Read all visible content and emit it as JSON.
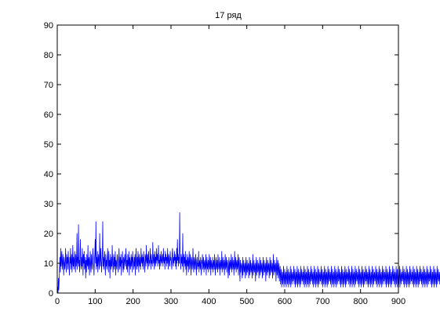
{
  "chart_data": {
    "type": "line",
    "title": "17 ряд",
    "xlabel": "",
    "ylabel": "",
    "xlim": [
      0,
      900
    ],
    "ylim": [
      0,
      90
    ],
    "xticks": [
      0,
      100,
      200,
      300,
      400,
      500,
      600,
      700,
      800,
      900
    ],
    "yticks": [
      0,
      10,
      20,
      30,
      40,
      50,
      60,
      70,
      80,
      90
    ],
    "grid": false,
    "legend": "none",
    "series": [
      {
        "color": "#0000ff",
        "x_start": 1,
        "x_step": 1,
        "values": [
          2,
          0,
          5,
          1,
          4,
          8,
          12,
          7,
          15,
          9,
          11,
          14,
          8,
          10,
          13,
          9,
          6,
          12,
          10,
          8,
          11,
          15,
          9,
          7,
          13,
          10,
          12,
          8,
          14,
          11,
          9,
          6,
          12,
          10,
          15,
          8,
          11,
          13,
          7,
          10,
          16,
          9,
          12,
          8,
          11,
          14,
          10,
          7,
          13,
          9,
          11,
          20,
          8,
          12,
          10,
          23,
          9,
          11,
          7,
          13,
          18,
          10,
          8,
          12,
          9,
          15,
          11,
          6,
          13,
          10,
          14,
          8,
          9,
          12,
          5,
          11,
          7,
          13,
          10,
          9,
          16,
          8,
          11,
          12,
          6,
          10,
          14,
          9,
          7,
          13,
          11,
          8,
          10,
          15,
          12,
          9,
          6,
          11,
          13,
          18,
          10,
          24,
          8,
          12,
          9,
          14,
          7,
          11,
          13,
          10,
          8,
          20,
          12,
          9,
          15,
          11,
          7,
          10,
          13,
          24,
          9,
          12,
          8,
          11,
          14,
          10,
          6,
          13,
          9,
          11,
          8,
          12,
          15,
          10,
          7,
          14,
          9,
          11,
          5,
          13,
          10,
          8,
          12,
          9,
          16,
          11,
          7,
          10,
          13,
          8,
          12,
          9,
          14,
          6,
          11,
          10,
          8,
          13,
          12,
          9,
          7,
          11,
          15,
          10,
          8,
          12,
          9,
          13,
          6,
          11,
          10,
          14,
          9,
          7,
          12,
          8,
          11,
          13,
          10,
          9,
          15,
          12,
          8,
          11,
          7,
          13,
          10,
          9,
          14,
          6,
          12,
          11,
          8,
          10,
          13,
          9,
          12,
          7,
          14,
          11,
          10,
          8,
          12,
          9,
          13,
          6,
          11,
          15,
          10,
          8,
          12,
          9,
          14,
          11,
          7,
          13,
          10,
          9,
          12,
          8,
          15,
          11,
          10,
          13,
          9,
          12,
          8,
          14,
          11,
          10,
          7,
          13,
          12,
          9,
          16,
          11,
          10,
          13,
          8,
          12,
          14,
          9,
          11,
          10,
          15,
          12,
          8,
          13,
          10,
          11,
          9,
          17,
          12,
          10,
          13,
          8,
          11,
          14,
          9,
          12,
          10,
          15,
          11,
          13,
          9,
          12,
          16,
          10,
          11,
          8,
          13,
          12,
          9,
          14,
          11,
          10,
          12,
          13,
          9,
          15,
          11,
          10,
          12,
          8,
          14,
          11,
          13,
          9,
          12,
          10,
          15,
          11,
          8,
          13,
          12,
          10,
          9,
          14,
          11,
          12,
          10,
          8,
          13,
          15,
          11,
          9,
          12,
          10,
          14,
          11,
          13,
          9,
          12,
          8,
          15,
          10,
          18,
          11,
          13,
          9,
          12,
          10,
          27,
          14,
          11,
          8,
          13,
          10,
          12,
          9,
          20,
          11,
          7,
          13,
          10,
          12,
          9,
          14,
          8,
          11,
          6,
          13,
          10,
          9,
          12,
          7,
          11,
          14,
          8,
          10,
          13,
          9,
          6,
          12,
          11,
          8,
          10,
          15,
          9,
          7,
          12,
          11,
          8,
          10,
          13,
          9,
          6,
          11,
          12,
          8,
          10,
          9,
          14,
          7,
          11,
          10,
          8,
          12,
          9,
          6,
          11,
          10,
          13,
          8,
          9,
          12,
          7,
          10,
          11,
          8,
          9,
          13,
          6,
          10,
          12,
          8,
          9,
          11,
          7,
          10,
          13,
          8,
          9,
          12,
          6,
          11,
          10,
          8,
          9,
          12,
          7,
          10,
          11,
          8,
          13,
          9,
          6,
          10,
          12,
          8,
          9,
          11,
          7,
          13,
          10,
          8,
          9,
          12,
          6,
          10,
          11,
          8,
          9,
          14,
          7,
          10,
          12,
          8,
          9,
          11,
          6,
          10,
          13,
          8,
          9,
          12,
          7,
          10,
          11,
          8,
          5,
          9,
          12,
          6,
          10,
          11,
          8,
          9,
          13,
          7,
          10,
          12,
          8,
          9,
          11,
          6,
          10,
          14,
          8,
          9,
          12,
          7,
          10,
          11,
          8,
          9,
          13,
          6,
          10,
          12,
          8,
          4,
          11,
          7,
          9,
          10,
          8,
          5,
          12,
          6,
          9,
          11,
          7,
          8,
          10,
          5,
          9,
          12,
          6,
          8,
          11,
          7,
          9,
          10,
          5,
          8,
          12,
          6,
          9,
          11,
          7,
          8,
          10,
          5,
          9,
          13,
          6,
          8,
          11,
          7,
          9,
          10,
          4,
          8,
          12,
          6,
          9,
          11,
          7,
          8,
          10,
          5,
          9,
          12,
          6,
          8,
          11,
          7,
          9,
          10,
          5,
          8,
          12,
          6,
          9,
          11,
          7,
          8,
          10,
          4,
          9,
          12,
          6,
          8,
          11,
          7,
          9,
          10,
          5,
          8,
          12,
          6,
          9,
          11,
          7,
          8,
          10,
          5,
          9,
          13,
          6,
          8,
          11,
          7,
          9,
          10,
          4,
          8,
          12,
          6,
          9,
          11,
          5,
          8,
          10,
          4,
          7,
          9,
          3,
          6,
          8,
          2,
          5,
          7,
          3,
          6,
          9,
          2,
          5,
          8,
          3,
          6,
          7,
          2,
          5,
          9,
          3,
          6,
          8,
          2,
          5,
          7,
          3,
          6,
          9,
          2,
          5,
          8,
          3,
          6,
          7,
          4,
          5,
          9,
          3,
          6,
          8,
          2,
          5,
          7,
          3,
          6,
          9,
          2,
          5,
          8,
          3,
          6,
          7,
          2,
          5,
          9,
          3,
          6,
          8,
          4,
          5,
          7,
          3,
          6,
          9,
          2,
          5,
          8,
          3,
          6,
          7,
          2,
          5,
          9,
          3,
          6,
          8,
          2,
          5,
          7,
          3,
          6,
          9,
          4,
          5,
          8,
          3,
          6,
          7,
          2,
          5,
          9,
          3,
          6,
          8,
          2,
          5,
          7,
          3,
          6,
          9,
          2,
          5,
          8,
          3,
          6,
          7,
          4,
          5,
          9,
          3,
          6,
          8,
          2,
          5,
          7,
          3,
          6,
          9,
          2,
          5,
          8,
          3,
          6,
          7,
          2,
          5,
          9,
          3,
          6,
          8,
          4,
          5,
          7,
          3,
          6,
          9,
          2,
          5,
          8,
          3,
          6,
          7,
          2,
          5,
          9,
          3,
          6,
          8,
          2,
          5,
          7,
          3,
          6,
          9,
          4,
          5,
          8,
          3,
          6,
          7,
          2,
          5,
          9,
          3,
          6,
          8,
          2,
          5,
          7,
          3,
          6,
          9,
          2,
          5,
          8,
          3,
          6,
          7,
          4,
          5,
          9,
          3,
          6,
          8,
          2,
          5,
          7,
          3,
          6,
          9,
          2,
          5,
          8,
          3,
          6,
          7,
          2,
          5,
          9,
          3,
          6,
          8,
          4,
          5,
          7,
          3,
          6,
          9,
          2,
          5,
          8,
          3,
          6,
          7,
          2,
          5,
          9,
          3,
          6,
          8,
          2,
          5,
          7,
          3,
          6,
          9,
          4,
          5,
          8,
          3,
          6,
          7,
          2,
          5,
          9,
          3,
          6,
          8,
          2,
          5,
          7,
          3,
          6,
          9,
          2,
          5,
          8,
          3,
          6,
          7,
          4,
          5,
          9,
          3,
          6,
          8,
          2,
          5,
          7,
          3,
          6,
          9,
          2,
          5,
          8,
          3,
          6,
          7,
          2,
          5,
          9,
          3,
          6,
          8,
          4,
          5,
          7,
          3,
          6,
          9,
          2,
          5,
          8,
          3,
          6,
          7,
          2,
          5,
          9,
          3,
          6,
          8,
          2,
          5,
          7,
          3,
          6,
          9,
          4,
          5,
          8,
          3,
          6,
          7,
          2,
          5,
          9,
          3,
          6,
          8,
          2,
          5,
          7,
          3,
          6,
          9,
          2,
          5,
          8,
          3,
          6,
          7,
          4,
          5,
          9,
          3,
          6,
          8,
          2,
          5,
          7,
          3,
          6,
          9,
          2,
          5,
          8,
          3,
          6,
          7,
          2,
          5,
          9,
          3,
          6,
          8,
          4,
          5,
          7,
          3,
          6,
          9,
          2,
          5,
          8,
          3,
          6,
          7,
          2,
          5,
          9,
          3,
          6,
          8,
          2,
          5,
          7,
          3,
          6,
          9,
          4,
          5,
          8,
          3,
          6,
          7,
          2,
          5,
          9,
          3,
          6,
          8,
          2,
          5,
          7,
          3,
          6,
          9,
          2,
          5,
          8,
          3,
          6,
          7,
          4,
          5,
          9,
          3,
          6,
          8,
          2,
          5,
          7,
          3,
          6,
          9,
          2,
          5,
          8,
          3,
          6,
          7,
          2,
          5,
          9,
          3,
          6,
          8,
          4,
          5,
          7,
          3,
          6,
          9,
          2,
          5,
          8,
          3,
          6,
          7,
          2,
          5,
          9,
          3,
          6,
          8,
          2,
          5,
          7,
          3,
          6,
          9,
          4
        ]
      }
    ]
  }
}
